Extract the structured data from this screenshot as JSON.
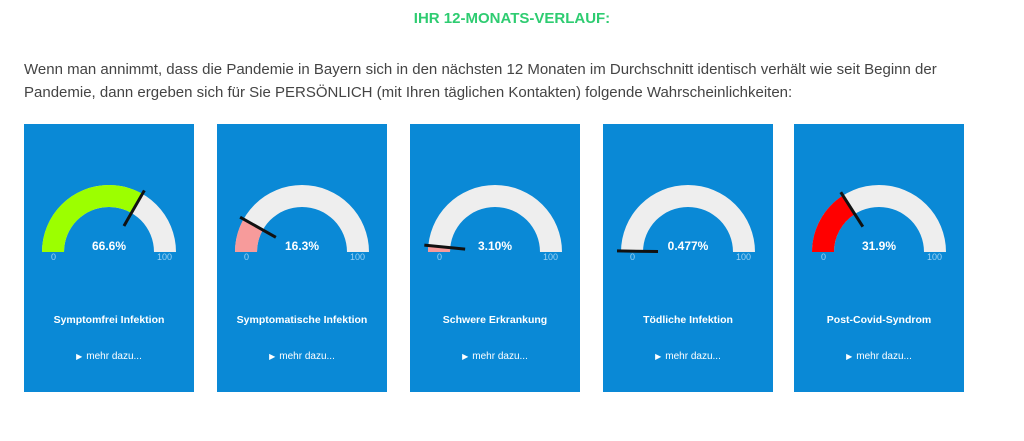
{
  "heading": "IHR 12-MONATS-VERLAUF:",
  "intro": "Wenn man annimmt, dass die Pandemie in Bayern sich in den nächsten 12 Monaten im Durchschnitt identisch verhält wie seit Beginn der Pandemie, dann ergeben sich für Sie PERSÖNLICH (mit Ihren täglichen Kontakten) folgende Wahrscheinlichkeiten:",
  "gauge_scale": {
    "min_label": "0",
    "max_label": "100",
    "min": 0,
    "max": 100
  },
  "more_label": "mehr dazu...",
  "cards": [
    {
      "title": "Symptomfrei Infektion",
      "value_label": "66.6%",
      "value": 66.6,
      "color": "#9cff00"
    },
    {
      "title": "Symptomatische Infektion",
      "value_label": "16.3%",
      "value": 16.3,
      "color": "#f79b9b"
    },
    {
      "title": "Schwere Erkrankung",
      "value_label": "3.10%",
      "value": 3.1,
      "color": "#f79b9b"
    },
    {
      "title": "Tödliche Infektion",
      "value_label": "0.477%",
      "value": 0.477,
      "color": "#f79b9b"
    },
    {
      "title": "Post-Covid-Syndrom",
      "value_label": "31.9%",
      "value": 31.9,
      "color": "#ff0000"
    }
  ],
  "colors": {
    "card_bg": "#0a89d6",
    "gauge_track": "#eeeeee",
    "needle": "#111111",
    "heading": "#2ecc71"
  },
  "icons": {
    "more": "triangle-right-icon"
  }
}
